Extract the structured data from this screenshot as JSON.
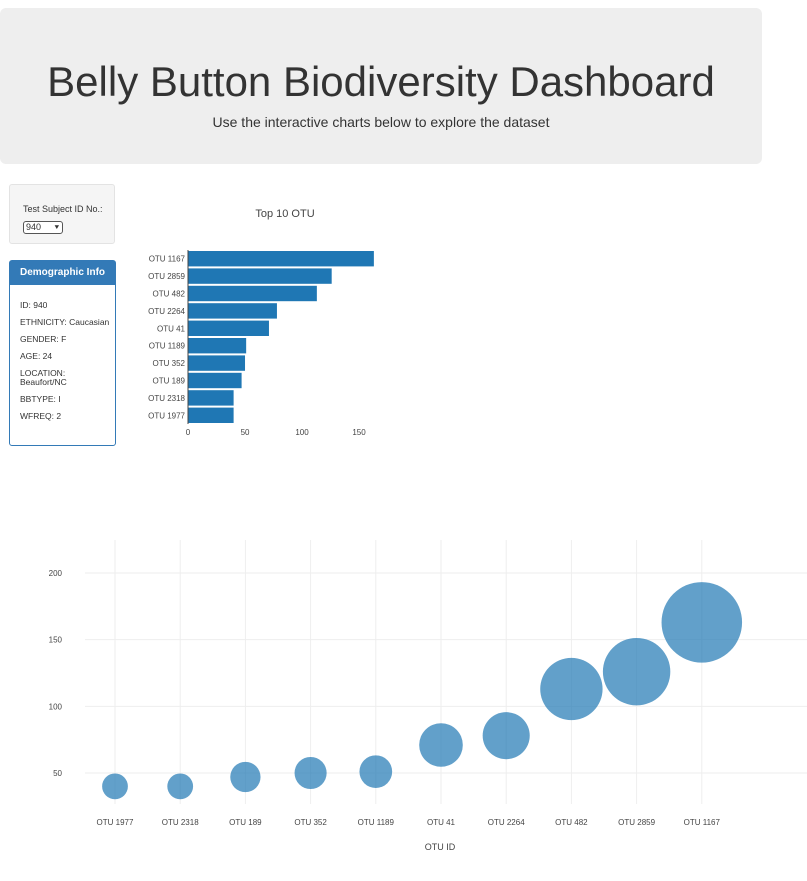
{
  "header": {
    "title": "Belly Button Biodiversity Dashboard",
    "subtitle": "Use the interactive charts below to explore the dataset"
  },
  "selector": {
    "label": "Test Subject ID No.:",
    "selected": "940"
  },
  "demographics": {
    "heading": "Demographic Info",
    "rows": [
      "ID: 940",
      "ETHNICITY: Caucasian",
      "GENDER: F",
      "AGE: 24",
      "LOCATION: Beaufort/NC",
      "BBTYPE: I",
      "WFREQ: 2"
    ]
  },
  "colors": {
    "bar": "#1f77b4",
    "bubble": "#1f77b4"
  },
  "chart_data": [
    {
      "type": "bar",
      "orientation": "horizontal",
      "title": "Top 10 OTU",
      "categories": [
        "OTU 1167",
        "OTU 2859",
        "OTU 482",
        "OTU 2264",
        "OTU 41",
        "OTU 1189",
        "OTU 352",
        "OTU 189",
        "OTU 2318",
        "OTU 1977"
      ],
      "values": [
        163,
        126,
        113,
        78,
        71,
        51,
        50,
        47,
        40,
        40
      ],
      "x_ticks": [
        0,
        50,
        100,
        150
      ],
      "xlim": [
        0,
        171
      ]
    },
    {
      "type": "scatter",
      "subtype": "bubble",
      "xlabel": "OTU ID",
      "categories": [
        "OTU 1977",
        "OTU 2318",
        "OTU 189",
        "OTU 352",
        "OTU 1189",
        "OTU 41",
        "OTU 2264",
        "OTU 482",
        "OTU 2859",
        "OTU 1167"
      ],
      "values": [
        40,
        40,
        47,
        50,
        51,
        71,
        78,
        113,
        126,
        163
      ],
      "y_ticks": [
        50,
        100,
        150,
        200
      ],
      "ylim": [
        25,
        225
      ],
      "grid": true
    }
  ]
}
